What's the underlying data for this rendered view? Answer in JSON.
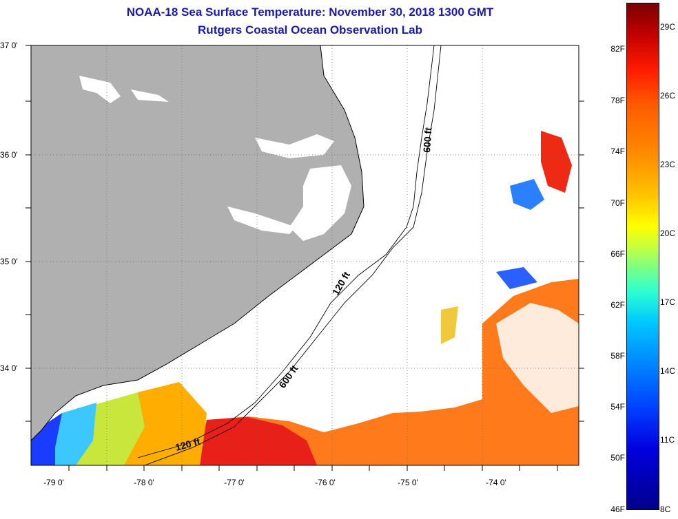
{
  "title": {
    "line1": "NOAA-18 Sea Surface Temperature:  November 30, 2018 1300 GMT",
    "line2": "Rutgers Coastal Ocean Observation Lab"
  },
  "axes": {
    "longitude_labels": [
      "-79 0'",
      "-78 0'",
      "-77 0'",
      "-76 0'",
      "-75 0'",
      "-74 0'"
    ],
    "latitude_labels": [
      "37 0'",
      "36 0'",
      "35 0'",
      "34 0'"
    ]
  },
  "depth_contours": {
    "labels": [
      "600 ft",
      "120 ft",
      "600 ft",
      "120 ft"
    ]
  },
  "colorbar": {
    "fahrenheit_labels": [
      "82F",
      "78F",
      "74F",
      "70F",
      "66F",
      "62F",
      "58F",
      "54F",
      "50F",
      "46F"
    ],
    "celsius_labels": [
      "29C",
      "26C",
      "23C",
      "20C",
      "17C",
      "14C",
      "11C",
      "8C"
    ]
  },
  "colors": {
    "land": "#b0b0b0",
    "title": "#1a1aa8",
    "warm_water": "#ff7a00",
    "gulf_stream_hot": "#e81e10",
    "cold_water": "#1a3cff"
  }
}
